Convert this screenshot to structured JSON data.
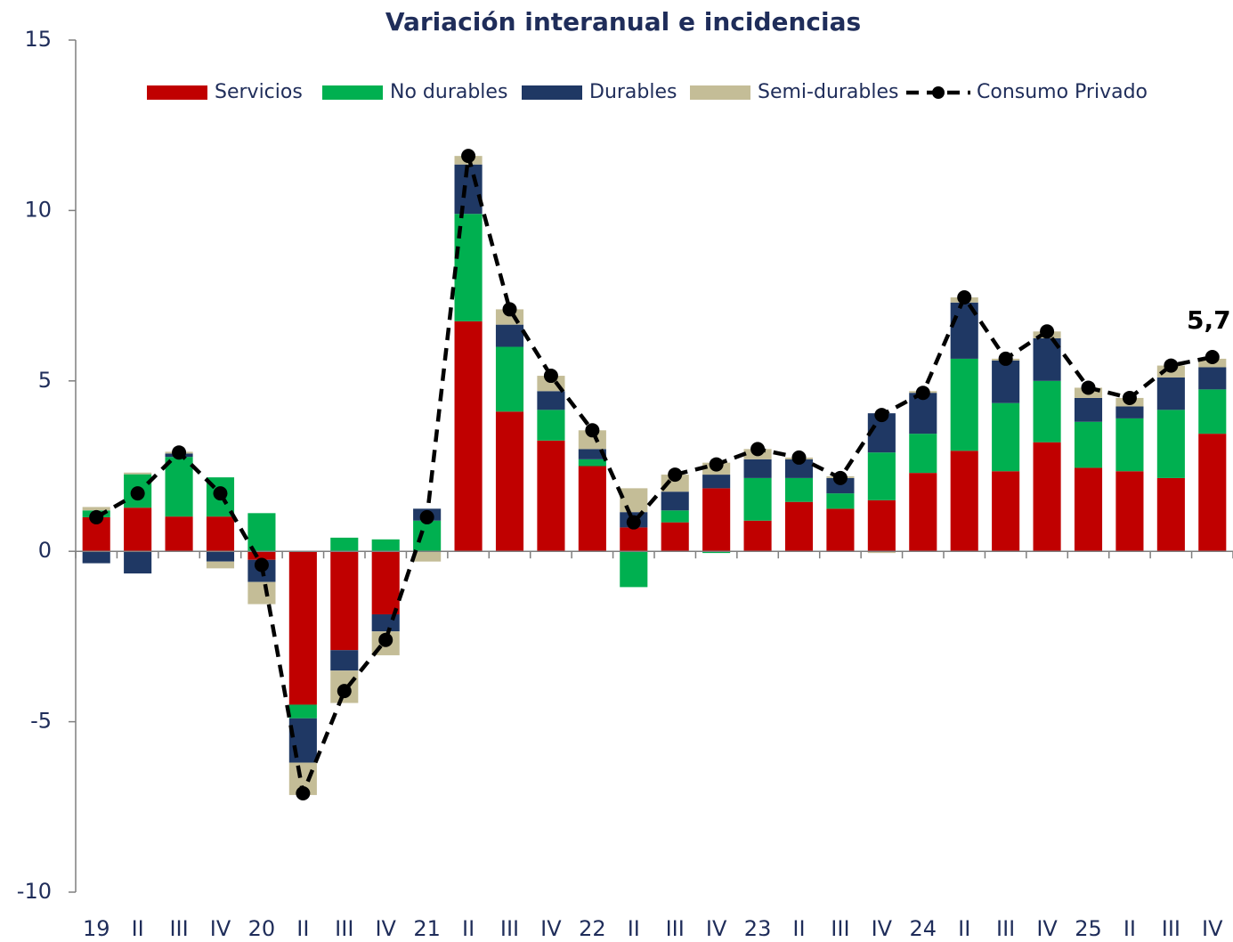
{
  "chart_data": {
    "type": "bar",
    "stacked": true,
    "title": "Variación interanual e incidencias",
    "categories": [
      "19",
      "II",
      "III",
      "IV",
      "20",
      "II",
      "III",
      "IV",
      "21",
      "II",
      "III",
      "IV",
      "22",
      "II",
      "III",
      "IV",
      "23",
      "II",
      "III",
      "IV",
      "24",
      "II",
      "III",
      "IV",
      "25",
      "II",
      "III",
      "IV"
    ],
    "series": [
      {
        "name": "Servicios",
        "color": "#c00000",
        "values": [
          1.0,
          1.28,
          1.02,
          1.02,
          -0.25,
          -4.5,
          -2.9,
          -1.85,
          0.0,
          6.75,
          4.1,
          3.25,
          2.5,
          0.7,
          0.85,
          1.85,
          0.9,
          1.45,
          1.25,
          1.5,
          2.3,
          2.95,
          2.35,
          3.2,
          2.45,
          2.35,
          2.15,
          3.45
        ]
      },
      {
        "name": "No durables",
        "color": "#00b050",
        "values": [
          0.2,
          0.98,
          1.75,
          1.15,
          1.12,
          -0.4,
          0.4,
          0.35,
          0.9,
          3.15,
          1.9,
          0.9,
          0.2,
          -1.05,
          0.35,
          -0.05,
          1.25,
          0.7,
          0.45,
          1.4,
          1.15,
          2.7,
          2.0,
          1.8,
          1.35,
          1.55,
          2.0,
          1.3
        ]
      },
      {
        "name": "Durables",
        "color": "#1f3864",
        "values": [
          -0.35,
          -0.65,
          0.1,
          -0.3,
          -0.65,
          -1.3,
          -0.6,
          -0.5,
          0.35,
          1.45,
          0.65,
          0.55,
          0.3,
          0.45,
          0.55,
          0.4,
          0.55,
          0.55,
          0.45,
          1.15,
          1.2,
          1.65,
          1.25,
          1.25,
          0.7,
          0.35,
          0.95,
          0.65
        ]
      },
      {
        "name": "Semi-durables",
        "color": "#c4bd97",
        "values": [
          0.1,
          0.05,
          0.05,
          -0.2,
          -0.65,
          -0.95,
          -0.95,
          -0.7,
          -0.3,
          0.25,
          0.45,
          0.45,
          0.55,
          0.7,
          0.5,
          0.35,
          0.3,
          0.05,
          0.05,
          -0.05,
          0.05,
          0.15,
          0.05,
          0.2,
          0.3,
          0.25,
          0.35,
          0.25
        ]
      },
      {
        "name": "Consumo Privado",
        "type": "line",
        "color": "#000000",
        "dashed": true,
        "values": [
          1.0,
          1.7,
          2.9,
          1.7,
          -0.4,
          -7.1,
          -4.1,
          -2.6,
          1.0,
          11.6,
          7.1,
          5.15,
          3.55,
          0.85,
          2.25,
          2.55,
          3.0,
          2.75,
          2.15,
          4.0,
          4.65,
          7.45,
          5.65,
          6.45,
          4.8,
          4.5,
          5.45,
          5.7
        ],
        "value_labels": [
          null,
          null,
          null,
          null,
          null,
          null,
          null,
          null,
          null,
          null,
          null,
          null,
          null,
          null,
          null,
          null,
          null,
          null,
          null,
          null,
          null,
          null,
          null,
          null,
          null,
          null,
          null,
          "5,7"
        ]
      }
    ],
    "ylim": [
      -10,
      15
    ],
    "yticks": [
      15,
      10,
      5,
      0,
      -5,
      -10
    ],
    "legend": "top"
  }
}
